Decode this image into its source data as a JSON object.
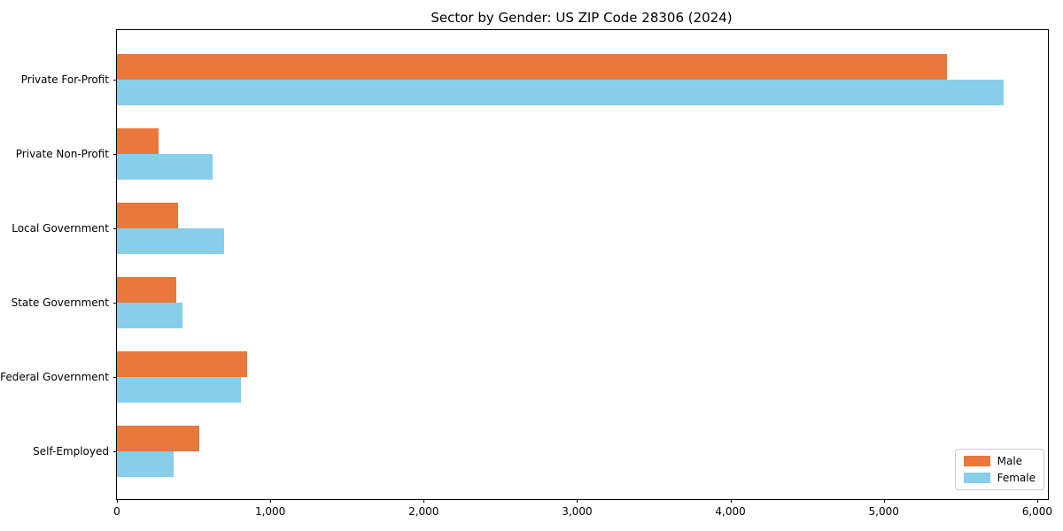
{
  "chart_data": {
    "type": "bar",
    "orientation": "horizontal",
    "title": "Sector by Gender: US ZIP Code 28306 (2024)",
    "xlabel": "",
    "ylabel": "",
    "categories": [
      "Private For-Profit",
      "Private Non-Profit",
      "Local Government",
      "State Government",
      "Federal Government",
      "Self-Employed"
    ],
    "series": [
      {
        "name": "Male",
        "color": "#E8783C",
        "values": [
          5410,
          270,
          400,
          385,
          850,
          540
        ]
      },
      {
        "name": "Female",
        "color": "#87CEEB",
        "values": [
          5780,
          625,
          700,
          430,
          810,
          370
        ]
      }
    ],
    "xlim": [
      0,
      6070
    ],
    "xticks": [
      {
        "value": 0,
        "label": "0"
      },
      {
        "value": 1000,
        "label": "1,000"
      },
      {
        "value": 2000,
        "label": "2,000"
      },
      {
        "value": 3000,
        "label": "3,000"
      },
      {
        "value": 4000,
        "label": "4,000"
      },
      {
        "value": 5000,
        "label": "5,000"
      },
      {
        "value": 6000,
        "label": "6,000"
      }
    ],
    "grid": false,
    "legend": {
      "position": "lower-right",
      "entries": [
        "Male",
        "Female"
      ]
    }
  },
  "colors": {
    "male": "#E8783C",
    "female": "#87CEEB",
    "axis": "#000000",
    "legend_border": "#cccccc",
    "background": "#ffffff"
  }
}
